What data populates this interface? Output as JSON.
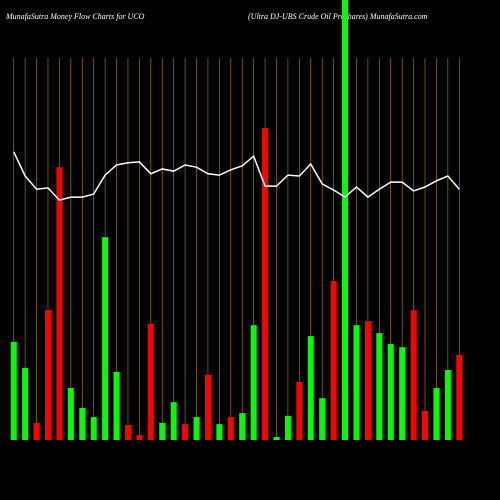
{
  "chart_data": {
    "type": "bar",
    "title": "MunafaSutra  Money Flow  Charts for UCO",
    "subtitle": "(Ultra DJ-UBS Crude   Oil Proshares) MunafaSutra.com",
    "categories": [
      null,
      null,
      null,
      null,
      null,
      null,
      null,
      null,
      null,
      null,
      null,
      null,
      null,
      null,
      null,
      null,
      null,
      null,
      null,
      null,
      null,
      null,
      null,
      null,
      null,
      null,
      null,
      null,
      null,
      null,
      null,
      null,
      null,
      null,
      null,
      null,
      null,
      null,
      null,
      null
    ],
    "ylim": [
      0,
      100
    ],
    "series": [
      {
        "type": "bar",
        "values": [
          22.3,
          16.4,
          3.9,
          29.5,
          62,
          11.8,
          7.3,
          5.2,
          46.1,
          15.5,
          3.4,
          1.1,
          26.4,
          3.9,
          8.6,
          3.6,
          5.2,
          14.8,
          3.6,
          5.2,
          6.1,
          26.1,
          70.9,
          0.7,
          5.5,
          13.2,
          23.6,
          9.5,
          36.1,
          100,
          26.1,
          27,
          24.3,
          21.8,
          21.1,
          29.5,
          6.6,
          11.8,
          15.9,
          19.3
        ],
        "colors": [
          "#00ff00",
          "#00ff00",
          "#ff0000",
          "#ff0000",
          "#ff0000",
          "#00ff00",
          "#00ff00",
          "#00ff00",
          "#00ff00",
          "#00ff00",
          "#ff0000",
          "#ff0000",
          "#ff0000",
          "#00ff00",
          "#00ff00",
          "#ff0000",
          "#00ff00",
          "#ff0000",
          "#00ff00",
          "#ff0000",
          "#00ff00",
          "#00ff00",
          "#ff0000",
          "#00ff00",
          "#00ff00",
          "#ff0000",
          "#00ff00",
          "#00ff00",
          "#ff0000",
          "#00ff00",
          "#00ff00",
          "#ff0000",
          "#00ff00",
          "#00ff00",
          "#00ff00",
          "#ff0000",
          "#ff0000",
          "#00ff00",
          "#00ff00",
          "#ff0000"
        ]
      },
      {
        "type": "line",
        "color": "#ffffff",
        "values": [
          65.5,
          60,
          57,
          57.3,
          54.5,
          55.2,
          55.2,
          55.9,
          60.2,
          62.5,
          63,
          63.2,
          60.5,
          61.6,
          61.1,
          62.5,
          62,
          60.5,
          60.2,
          61.4,
          62.3,
          64.5,
          57.7,
          57.7,
          60.2,
          60,
          62.7,
          58.2,
          56.8,
          55.2,
          57.5,
          55.2,
          57,
          58.6,
          58.6,
          56.6,
          57.5,
          58.9,
          60,
          57
        ]
      }
    ],
    "grid_color": "#b8860b"
  }
}
